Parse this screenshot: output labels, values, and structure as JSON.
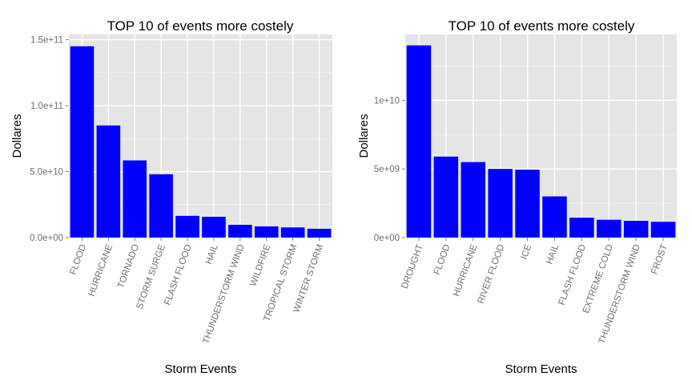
{
  "chart_data": [
    {
      "type": "bar",
      "title": "TOP 10 of events more costely",
      "xlabel": "Storm Events",
      "ylabel": "Dollares",
      "categories": [
        "FLOOD",
        "HURRICANE",
        "TORNADO",
        "STORM SURGE",
        "FLASH FLOOD",
        "HAIL",
        "THUNDERSTORM WIND",
        "WILDFIRE",
        "TROPICAL STORM",
        "WINTER STORM"
      ],
      "values": [
        145000000000,
        85000000000,
        58500000000,
        48000000000,
        16500000000,
        15800000000,
        9700000000,
        8500000000,
        7700000000,
        6700000000
      ],
      "ylim": [
        0,
        154000000000
      ],
      "yticks": [
        0,
        50000000000,
        100000000000,
        150000000000
      ],
      "ytick_labels": [
        "0.0e+00",
        "5.0e+10",
        "1.0e+11",
        "1.5e+11"
      ],
      "bar_color": "#0000ff",
      "panel_color": "#e5e5e5",
      "grid": true
    },
    {
      "type": "bar",
      "title": "TOP 10 of events more costely",
      "xlabel": "Storm Events",
      "ylabel": "Dollares",
      "categories": [
        "DROUGHT",
        "FLOOD",
        "HURRICANE",
        "RIVER FLOOD",
        "ICE",
        "HAIL",
        "FLASH FLOOD",
        "EXTREME COLD",
        "THUNDERSTORM WIND",
        "FROST"
      ],
      "values": [
        14000000000,
        5900000000,
        5500000000,
        5000000000,
        4950000000,
        3000000000,
        1450000000,
        1300000000,
        1220000000,
        1150000000
      ],
      "ylim": [
        0,
        14800000000
      ],
      "yticks": [
        0,
        5000000000,
        10000000000
      ],
      "ytick_labels": [
        "0e+00",
        "5e+09",
        "1e+10"
      ],
      "bar_color": "#0000ff",
      "panel_color": "#e5e5e5",
      "grid": true
    }
  ]
}
